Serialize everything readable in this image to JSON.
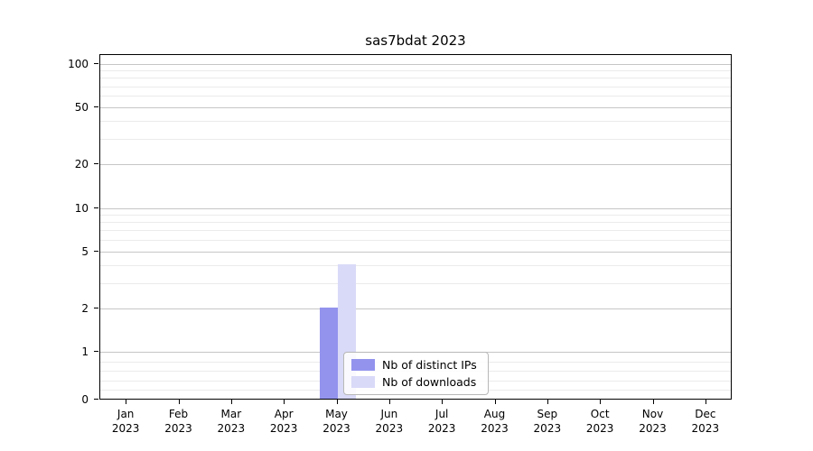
{
  "title": "sas7bdat 2023",
  "chart_data": {
    "type": "bar",
    "title": "sas7bdat 2023",
    "categories": [
      "Jan 2023",
      "Feb 2023",
      "Mar 2023",
      "Apr 2023",
      "May 2023",
      "Jun 2023",
      "Jul 2023",
      "Aug 2023",
      "Sep 2023",
      "Oct 2023",
      "Nov 2023",
      "Dec 2023"
    ],
    "series": [
      {
        "name": "Nb of distinct IPs",
        "color": "#9393ee",
        "values": [
          0,
          0,
          0,
          0,
          2,
          0,
          0,
          0,
          0,
          0,
          0,
          0
        ]
      },
      {
        "name": "Nb of downloads",
        "color": "#d9d9f8",
        "values": [
          0,
          0,
          0,
          0,
          4,
          0,
          0,
          0,
          0,
          0,
          0,
          0
        ]
      }
    ],
    "xlabel": "",
    "ylabel": "",
    "yscale": "symlog",
    "yticks": [
      0,
      1,
      2,
      5,
      10,
      20,
      50,
      100
    ],
    "ylim": [
      0,
      115
    ],
    "grid": "both",
    "legend_position": "lower center"
  }
}
